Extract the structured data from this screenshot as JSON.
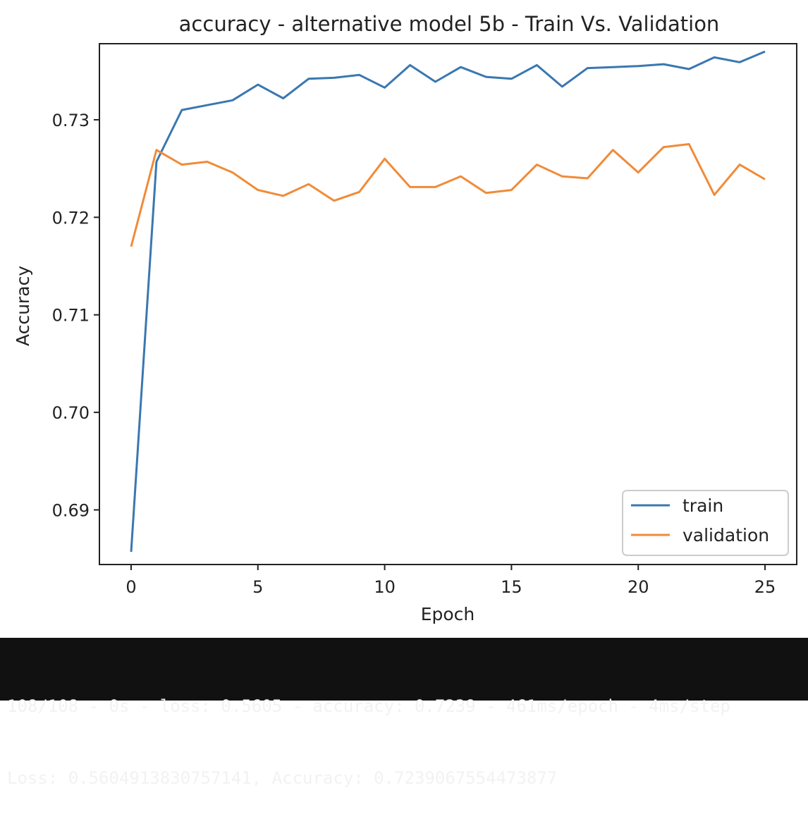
{
  "chart_data": {
    "type": "line",
    "title": "accuracy - alternative model 5b - Train Vs. Validation",
    "xlabel": "Epoch",
    "ylabel": "Accuracy",
    "xlim": [
      -1.25,
      26.25
    ],
    "ylim": [
      0.6844,
      0.7378
    ],
    "xticks": [
      0,
      5,
      10,
      15,
      20,
      25
    ],
    "xtick_labels": [
      "0",
      "5",
      "10",
      "15",
      "20",
      "25"
    ],
    "yticks": [
      0.69,
      0.7,
      0.71,
      0.72,
      0.73
    ],
    "ytick_labels": [
      "0.69",
      "0.70",
      "0.71",
      "0.72",
      "0.73"
    ],
    "grid": false,
    "legend_position": "lower-right",
    "x": [
      0,
      1,
      2,
      3,
      4,
      5,
      6,
      7,
      8,
      9,
      10,
      11,
      12,
      13,
      14,
      15,
      16,
      17,
      18,
      19,
      20,
      21,
      22,
      23,
      24,
      25
    ],
    "series": [
      {
        "name": "train",
        "color": "#3a77b0",
        "values": [
          0.6857,
          0.7257,
          0.731,
          0.7315,
          0.732,
          0.7336,
          0.7322,
          0.7342,
          0.7343,
          0.7346,
          0.7333,
          0.7356,
          0.7339,
          0.7354,
          0.7344,
          0.7342,
          0.7356,
          0.7334,
          0.7353,
          0.7354,
          0.7355,
          0.7357,
          0.7352,
          0.7364,
          0.7359,
          0.737
        ]
      },
      {
        "name": "validation",
        "color": "#f08b38",
        "values": [
          0.717,
          0.7269,
          0.7254,
          0.7257,
          0.7246,
          0.7228,
          0.7222,
          0.7234,
          0.7217,
          0.7226,
          0.726,
          0.7231,
          0.7231,
          0.7242,
          0.7225,
          0.7228,
          0.7254,
          0.7242,
          0.724,
          0.7269,
          0.7246,
          0.7272,
          0.7275,
          0.7223,
          0.7254,
          0.7239
        ]
      }
    ]
  },
  "console": {
    "line1": "108/108 - 0s - loss: 0.5605 - accuracy: 0.7239 - 461ms/epoch - 4ms/step",
    "line2": "Loss: 0.5604913830757141, Accuracy: 0.7239067554473877"
  }
}
